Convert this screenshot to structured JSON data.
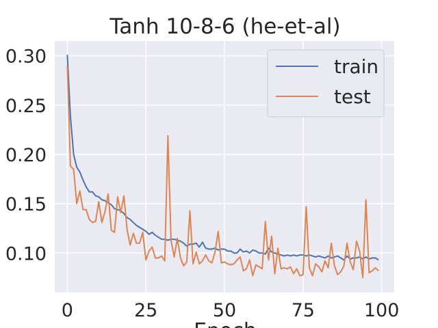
{
  "chart_data": {
    "type": "line",
    "title": "Tanh 10-8-6 (he-et-al)",
    "xlabel": "Epoch",
    "ylabel": "",
    "xlim": [
      -4,
      104
    ],
    "ylim": [
      0.06,
      0.315
    ],
    "xticks": [
      0,
      25,
      50,
      75,
      100
    ],
    "yticks": [
      0.1,
      0.15,
      0.2,
      0.25,
      0.3
    ],
    "ytick_labels": [
      "0.10",
      "0.15",
      "0.20",
      "0.25",
      "0.30"
    ],
    "grid": true,
    "legend": "top-right",
    "x": [
      0,
      1,
      2,
      3,
      4,
      5,
      6,
      7,
      8,
      9,
      10,
      11,
      12,
      13,
      14,
      15,
      16,
      17,
      18,
      19,
      20,
      21,
      22,
      23,
      24,
      25,
      26,
      27,
      28,
      29,
      30,
      31,
      32,
      33,
      34,
      35,
      36,
      37,
      38,
      39,
      40,
      41,
      42,
      43,
      44,
      45,
      46,
      47,
      48,
      49,
      50,
      51,
      52,
      53,
      54,
      55,
      56,
      57,
      58,
      59,
      60,
      61,
      62,
      63,
      64,
      65,
      66,
      67,
      68,
      69,
      70,
      71,
      72,
      73,
      74,
      75,
      76,
      77,
      78,
      79,
      80,
      81,
      82,
      83,
      84,
      85,
      86,
      87,
      88,
      89,
      90,
      91,
      92,
      93,
      94,
      95,
      96,
      97,
      98,
      99
    ],
    "series": [
      {
        "name": "train",
        "color": "#4c72b0",
        "values": [
          0.301,
          0.238,
          0.2,
          0.187,
          0.182,
          0.174,
          0.167,
          0.162,
          0.162,
          0.158,
          0.157,
          0.154,
          0.153,
          0.151,
          0.149,
          0.145,
          0.144,
          0.143,
          0.14,
          0.136,
          0.134,
          0.131,
          0.128,
          0.126,
          0.124,
          0.122,
          0.119,
          0.121,
          0.118,
          0.116,
          0.114,
          0.114,
          0.113,
          0.114,
          0.114,
          0.113,
          0.112,
          0.11,
          0.107,
          0.109,
          0.109,
          0.11,
          0.106,
          0.111,
          0.105,
          0.104,
          0.104,
          0.105,
          0.103,
          0.104,
          0.104,
          0.102,
          0.102,
          0.1,
          0.1,
          0.104,
          0.101,
          0.102,
          0.1,
          0.103,
          0.102,
          0.1,
          0.1,
          0.099,
          0.105,
          0.101,
          0.1,
          0.099,
          0.098,
          0.097,
          0.098,
          0.097,
          0.098,
          0.097,
          0.098,
          0.098,
          0.097,
          0.098,
          0.097,
          0.096,
          0.097,
          0.096,
          0.095,
          0.097,
          0.095,
          0.096,
          0.097,
          0.095,
          0.093,
          0.097,
          0.094,
          0.095,
          0.095,
          0.096,
          0.094,
          0.096,
          0.094,
          0.095,
          0.095,
          0.093
        ]
      },
      {
        "name": "test",
        "color": "#dd8452",
        "values": [
          0.29,
          0.188,
          0.185,
          0.15,
          0.163,
          0.144,
          0.144,
          0.134,
          0.131,
          0.132,
          0.152,
          0.131,
          0.142,
          0.16,
          0.123,
          0.121,
          0.157,
          0.141,
          0.158,
          0.124,
          0.108,
          0.12,
          0.11,
          0.11,
          0.121,
          0.093,
          0.102,
          0.106,
          0.095,
          0.095,
          0.097,
          0.092,
          0.219,
          0.113,
          0.096,
          0.115,
          0.095,
          0.087,
          0.091,
          0.143,
          0.089,
          0.101,
          0.089,
          0.092,
          0.098,
          0.092,
          0.09,
          0.101,
          0.122,
          0.09,
          0.091,
          0.089,
          0.088,
          0.089,
          0.093,
          0.096,
          0.082,
          0.084,
          0.093,
          0.077,
          0.088,
          0.086,
          0.084,
          0.132,
          0.093,
          0.117,
          0.079,
          0.105,
          0.084,
          0.085,
          0.084,
          0.086,
          0.079,
          0.084,
          0.077,
          0.078,
          0.147,
          0.085,
          0.077,
          0.089,
          0.086,
          0.081,
          0.092,
          0.085,
          0.11,
          0.087,
          0.078,
          0.081,
          0.087,
          0.11,
          0.091,
          0.083,
          0.112,
          0.102,
          0.075,
          0.154,
          0.08,
          0.082,
          0.085,
          0.082
        ]
      }
    ]
  }
}
